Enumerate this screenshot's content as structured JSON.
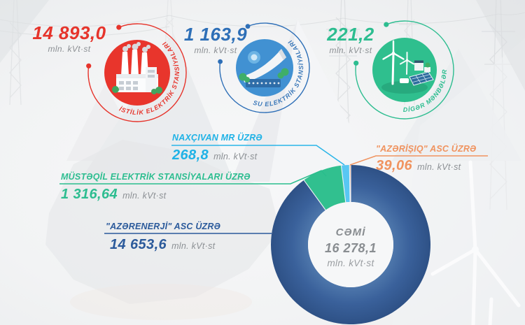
{
  "header": {
    "sources": [
      {
        "id": "istilik",
        "value": "14 893,0",
        "unit": "mln. kVt·st",
        "label": "İSTİLİK ELEKTRİK STANSİYALARI",
        "color": "#e6342b"
      },
      {
        "id": "su",
        "value": "1 163,9",
        "unit": "mln. kVt·st",
        "label": "SU ELEKTRİK STANSİYALARI",
        "color": "#2e6fb7"
      },
      {
        "id": "diger",
        "value": "221,2",
        "unit": "mln. kVt·st",
        "label": "DİGƏR MƏNBƏLƏR",
        "color": "#2dbd90"
      }
    ]
  },
  "chart_data": {
    "type": "donut",
    "direction": "clockwise",
    "start_angle_deg": 0,
    "legend_position": "callouts",
    "center": {
      "title": "CƏMİ",
      "value": "16 278,1",
      "unit": "mln. kVt·st"
    },
    "total": 16278.1,
    "segments": [
      {
        "id": "azerenerji",
        "label": "\"AZƏRENERJİ\" ASC ÜZRƏ",
        "value": 14653.6,
        "display": "14 653,6",
        "unit": "mln. kVt·st",
        "color": "#35598f",
        "label_color": "#2b5a9b",
        "gradient": true
      },
      {
        "id": "mustaqil",
        "label": "MÜSTƏQİL ELEKTRİK STANSİYALARI ÜZRƏ",
        "value": 1316.64,
        "display": "1 316,64",
        "unit": "mln. kVt·st",
        "color": "#31c08f",
        "label_color": "#2abd8d"
      },
      {
        "id": "naxcivan",
        "label": "NAXÇIVAN MR ÜZRƏ",
        "value": 268.8,
        "display": "268,8",
        "unit": "mln. kVt·st",
        "color": "#58c7f3",
        "label_color": "#1fb2e6"
      },
      {
        "id": "azerisiq",
        "label": "\"AZƏRİŞIQ\" ASC ÜZRƏ",
        "value": 39.06,
        "display": "39,06",
        "unit": "mln. kVt·st",
        "color": "#ee9258",
        "label_color": "#f0935f"
      }
    ]
  }
}
